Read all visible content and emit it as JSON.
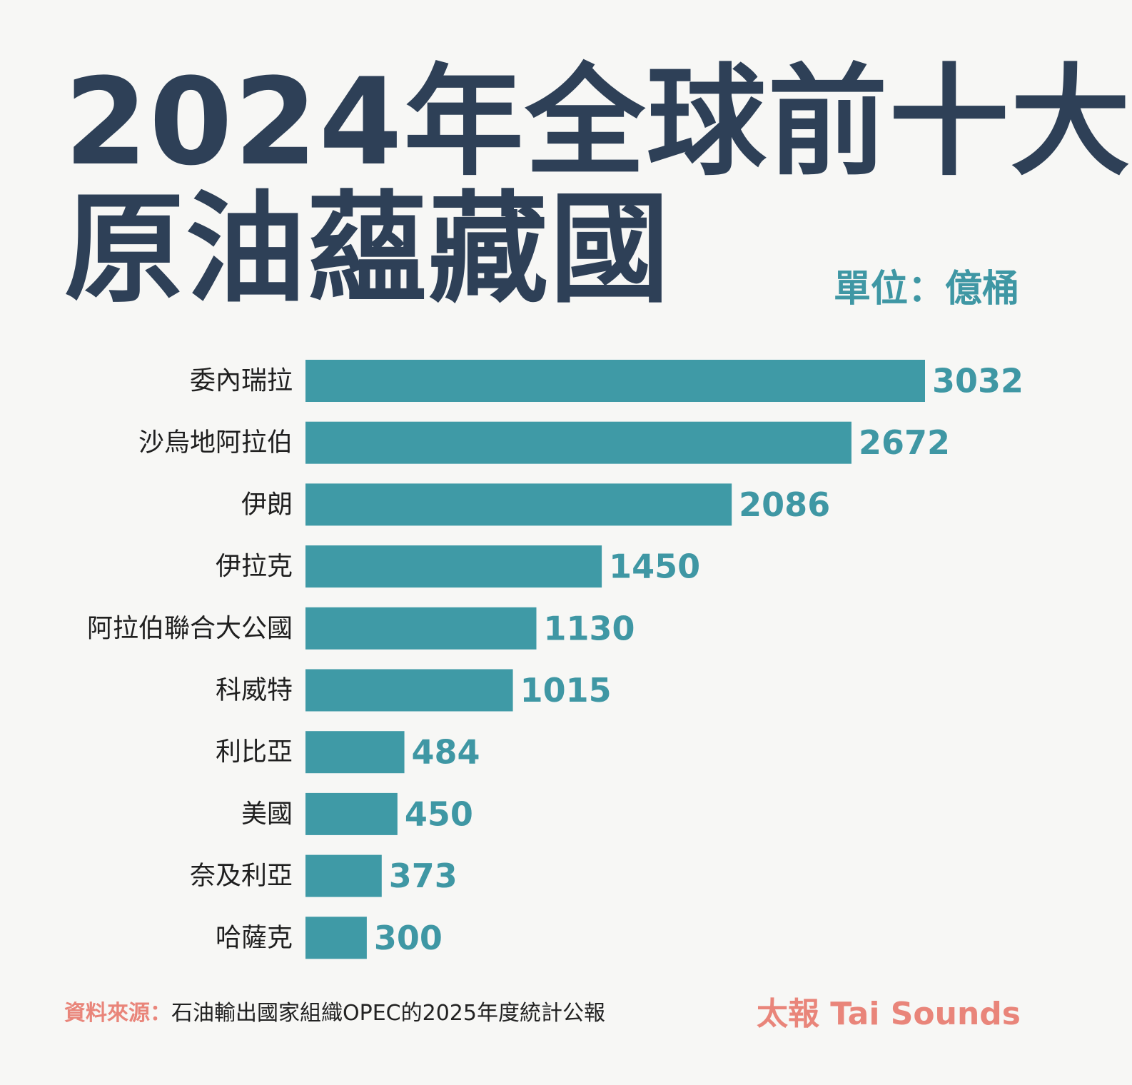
{
  "title_line1": "2024年全球前十大",
  "title_line2": "原油蘊藏國",
  "unit": "單位：億桶",
  "source_label": "資料來源：",
  "source_text": "石油輸出國家組織OPEC的2025年度統計公報",
  "brand": "太報 Tai Sounds",
  "colors": {
    "title": "#2e4057",
    "bar": "#3f9aa6",
    "value": "#3f97a4",
    "accent": "#e9857a"
  },
  "chart_data": {
    "type": "bar",
    "orientation": "horizontal",
    "categories": [
      "委內瑞拉",
      "沙烏地阿拉伯",
      "伊朗",
      "伊拉克",
      "阿拉伯聯合大公國",
      "科威特",
      "利比亞",
      "美國",
      "奈及利亞",
      "哈薩克"
    ],
    "values": [
      3032,
      2672,
      2086,
      1450,
      1130,
      1015,
      484,
      450,
      373,
      300
    ],
    "title": "2024年全球前十大原油蘊藏國",
    "unit": "單位：億桶",
    "xlim": [
      0,
      3032
    ],
    "grid": false,
    "legend": false
  }
}
